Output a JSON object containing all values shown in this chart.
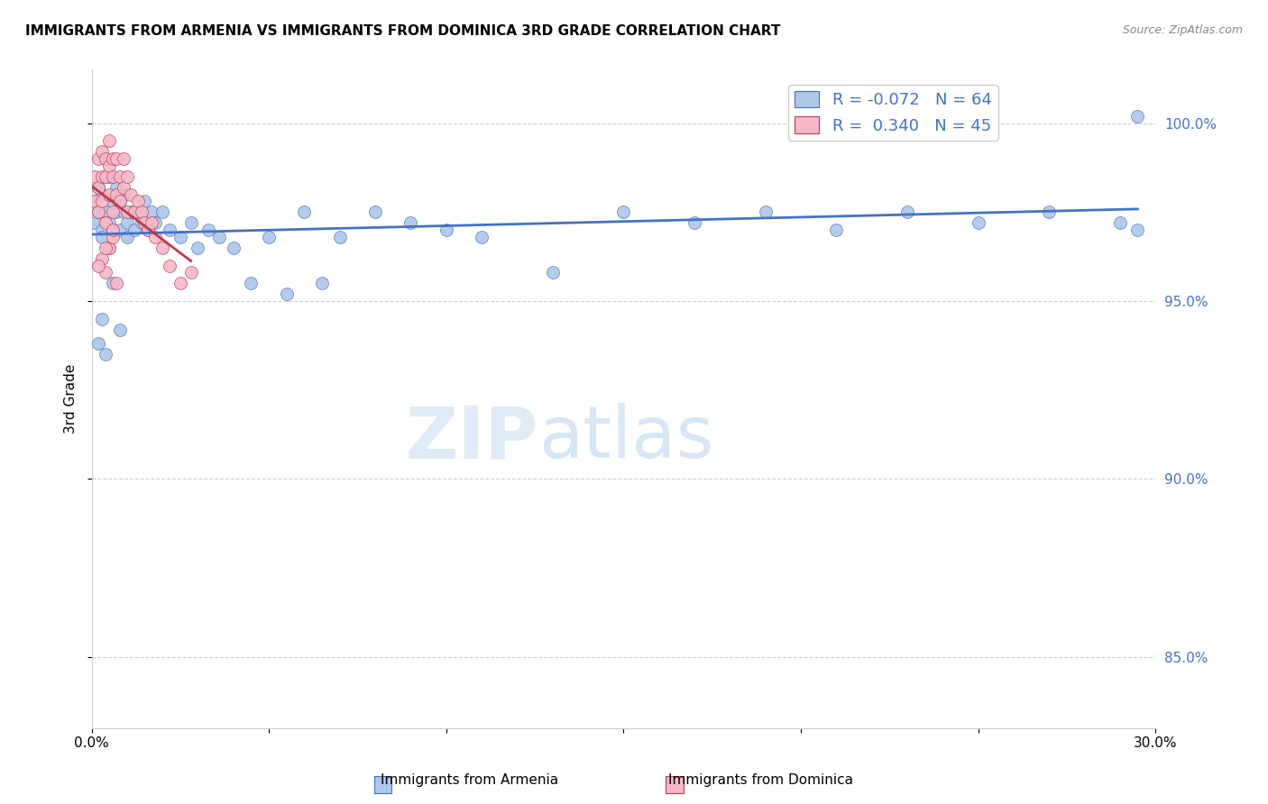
{
  "title": "IMMIGRANTS FROM ARMENIA VS IMMIGRANTS FROM DOMINICA 3RD GRADE CORRELATION CHART",
  "source": "Source: ZipAtlas.com",
  "ylabel": "3rd Grade",
  "xlim": [
    0.0,
    0.3
  ],
  "ylim": [
    83.0,
    101.5
  ],
  "legend_r1": "-0.072",
  "legend_n1": "64",
  "legend_r2": "0.340",
  "legend_n2": "45",
  "scatter_armenia_x": [
    0.001,
    0.001,
    0.002,
    0.002,
    0.003,
    0.003,
    0.003,
    0.004,
    0.004,
    0.005,
    0.005,
    0.005,
    0.006,
    0.006,
    0.007,
    0.007,
    0.008,
    0.008,
    0.009,
    0.009,
    0.01,
    0.01,
    0.011,
    0.012,
    0.013,
    0.014,
    0.015,
    0.016,
    0.017,
    0.018,
    0.02,
    0.022,
    0.025,
    0.028,
    0.03,
    0.033,
    0.036,
    0.04,
    0.045,
    0.05,
    0.055,
    0.06,
    0.065,
    0.07,
    0.08,
    0.09,
    0.1,
    0.11,
    0.13,
    0.15,
    0.17,
    0.19,
    0.21,
    0.23,
    0.25,
    0.27,
    0.29,
    0.295,
    0.002,
    0.003,
    0.004,
    0.006,
    0.008,
    0.295
  ],
  "scatter_armenia_y": [
    97.8,
    97.2,
    98.2,
    97.5,
    97.0,
    98.0,
    96.8,
    99.0,
    97.5,
    98.5,
    97.2,
    96.5,
    97.8,
    97.0,
    98.2,
    97.5,
    97.8,
    97.0,
    98.0,
    97.5,
    97.2,
    96.8,
    97.5,
    97.0,
    97.5,
    97.2,
    97.8,
    97.0,
    97.5,
    97.2,
    97.5,
    97.0,
    96.8,
    97.2,
    96.5,
    97.0,
    96.8,
    96.5,
    95.5,
    96.8,
    95.2,
    97.5,
    95.5,
    96.8,
    97.5,
    97.2,
    97.0,
    96.8,
    95.8,
    97.5,
    97.2,
    97.5,
    97.0,
    97.5,
    97.2,
    97.5,
    97.2,
    97.0,
    93.8,
    94.5,
    93.5,
    95.5,
    94.2,
    100.2
  ],
  "scatter_dominica_x": [
    0.001,
    0.001,
    0.002,
    0.002,
    0.002,
    0.003,
    0.003,
    0.003,
    0.004,
    0.004,
    0.004,
    0.005,
    0.005,
    0.005,
    0.006,
    0.006,
    0.006,
    0.007,
    0.007,
    0.008,
    0.008,
    0.009,
    0.009,
    0.01,
    0.01,
    0.011,
    0.012,
    0.013,
    0.014,
    0.015,
    0.016,
    0.017,
    0.018,
    0.02,
    0.022,
    0.025,
    0.028,
    0.003,
    0.004,
    0.005,
    0.006,
    0.007,
    0.002,
    0.004,
    0.006
  ],
  "scatter_dominica_y": [
    98.5,
    97.8,
    99.0,
    98.2,
    97.5,
    99.2,
    98.5,
    97.8,
    99.0,
    98.5,
    97.2,
    99.5,
    98.8,
    98.0,
    99.0,
    98.5,
    97.5,
    99.0,
    98.0,
    98.5,
    97.8,
    99.0,
    98.2,
    98.5,
    97.5,
    98.0,
    97.5,
    97.8,
    97.5,
    97.2,
    97.0,
    97.2,
    96.8,
    96.5,
    96.0,
    95.5,
    95.8,
    96.2,
    95.8,
    96.5,
    96.8,
    95.5,
    96.0,
    96.5,
    97.0
  ],
  "color_armenia": "#aec6e8",
  "color_dominica": "#f4b8c8",
  "trendline_armenia_color": "#4472c4",
  "trendline_dominica_color": "#c0384b",
  "watermark_zip": "ZIP",
  "watermark_atlas": "atlas",
  "grid_color": "#cccccc",
  "background_color": "#ffffff",
  "title_fontsize": 11,
  "tick_label_color_right": "#4472c4",
  "right_yticks": [
    85.0,
    90.0,
    95.0,
    100.0
  ],
  "right_ytick_labels": [
    "85.0%",
    "90.0%",
    "95.0%",
    "100.0%"
  ],
  "trendline_x_start": 0.0,
  "trendline_x_end": 0.295
}
